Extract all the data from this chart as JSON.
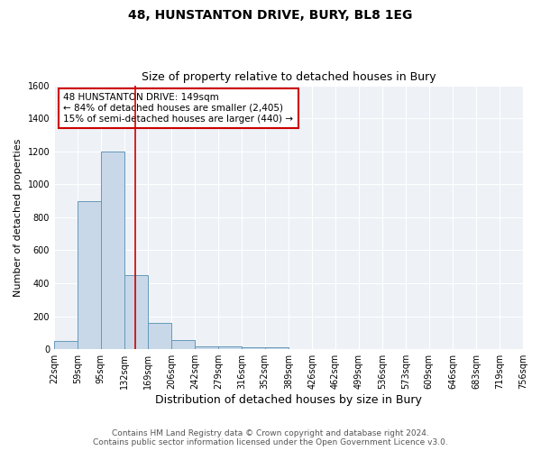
{
  "title": "48, HUNSTANTON DRIVE, BURY, BL8 1EG",
  "subtitle": "Size of property relative to detached houses in Bury",
  "xlabel": "Distribution of detached houses by size in Bury",
  "ylabel": "Number of detached properties",
  "footnote1": "Contains HM Land Registry data © Crown copyright and database right 2024.",
  "footnote2": "Contains public sector information licensed under the Open Government Licence v3.0.",
  "bin_edges": [
    22,
    59,
    95,
    132,
    169,
    206,
    242,
    279,
    316,
    352,
    389,
    426,
    462,
    499,
    536,
    573,
    609,
    646,
    683,
    719,
    756
  ],
  "bar_heights": [
    50,
    900,
    1200,
    450,
    160,
    55,
    20,
    15,
    10,
    10,
    0,
    0,
    0,
    0,
    0,
    0,
    0,
    0,
    0,
    0
  ],
  "bar_color": "#c8d8e8",
  "bar_edgecolor": "#6699bb",
  "vline_x": 149,
  "vline_color": "#cc0000",
  "annotation_line1": "48 HUNSTANTON DRIVE: 149sqm",
  "annotation_line2": "← 84% of detached houses are smaller (2,405)",
  "annotation_line3": "15% of semi-detached houses are larger (440) →",
  "annotation_edgecolor": "#cc0000",
  "ylim": [
    0,
    1600
  ],
  "yticks": [
    0,
    200,
    400,
    600,
    800,
    1000,
    1200,
    1400,
    1600
  ],
  "background_color": "#eef2f7",
  "title_fontsize": 10,
  "subtitle_fontsize": 9,
  "xlabel_fontsize": 9,
  "ylabel_fontsize": 8,
  "tick_fontsize": 7,
  "annotation_fontsize": 7.5,
  "footnote_fontsize": 6.5
}
